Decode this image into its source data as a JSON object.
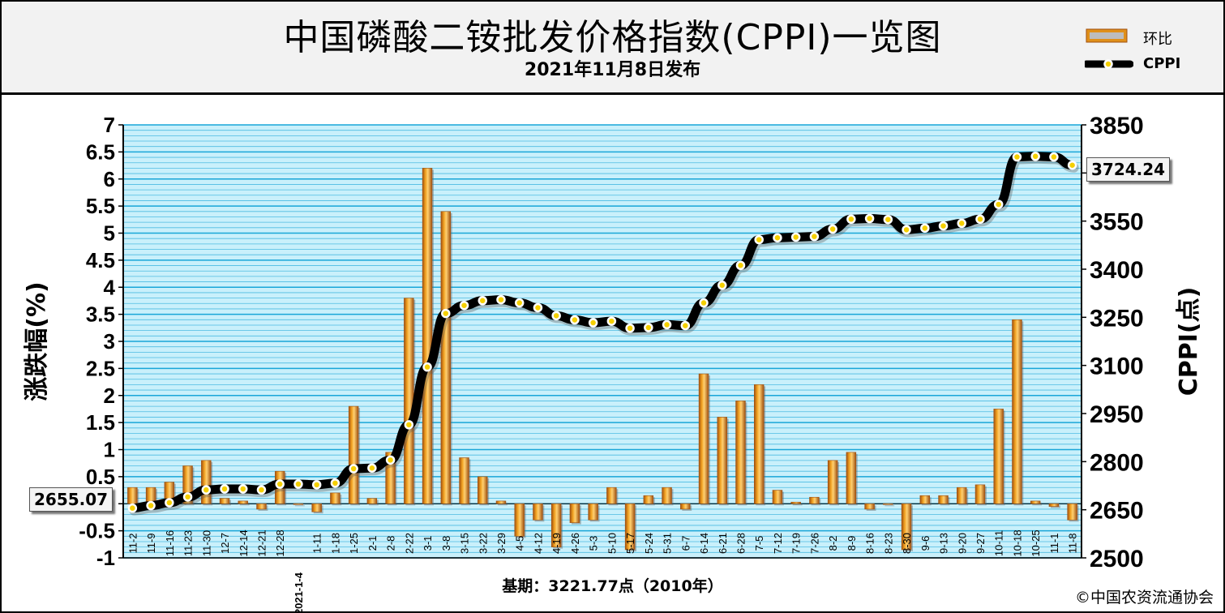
{
  "title": "中国磷酸二铵批发价格指数(CPPI)一览图",
  "subtitle": "2021年11月8日发布",
  "legend": {
    "bar_label": "环比",
    "line_label": "CPPI"
  },
  "base_note": "基期：3221.77点（2010年）",
  "copyright": "©中国农资流通协会",
  "callouts": {
    "first": "2655.07",
    "last": "3724.24"
  },
  "colors": {
    "bar_fill": "#f0a020",
    "bar_dark": "#a05010",
    "line": "#000000",
    "marker": "#f5d000",
    "plot_bg": "#c9f0fb",
    "grid": "#19a6d8"
  },
  "chart_data": {
    "type": "bar+line",
    "categories": [
      "11-2",
      "11-9",
      "11-16",
      "11-23",
      "11-30",
      "12-7",
      "12-14",
      "12-21",
      "12-28",
      "2021-1-4",
      "1-11",
      "1-18",
      "1-25",
      "2-1",
      "2-8",
      "2-22",
      "3-1",
      "3-8",
      "3-15",
      "3-22",
      "3-29",
      "4-5",
      "4-12",
      "4-19",
      "4-26",
      "5-3",
      "5-10",
      "5-17",
      "5-24",
      "5-31",
      "6-7",
      "6-14",
      "6-21",
      "6-28",
      "7-5",
      "7-12",
      "7-19",
      "7-26",
      "8-2",
      "8-9",
      "8-16",
      "8-23",
      "8-30",
      "9-6",
      "9-13",
      "9-20",
      "9-27",
      "10-11",
      "10-18",
      "10-25",
      "11-1",
      "11-8"
    ],
    "series": [
      {
        "name": "环比",
        "type": "bar",
        "axis": "left",
        "values": [
          0.3,
          0.3,
          0.4,
          0.7,
          0.8,
          0.1,
          0.05,
          -0.1,
          0.6,
          0.0,
          -0.15,
          0.2,
          1.8,
          0.1,
          0.95,
          3.8,
          6.2,
          5.4,
          0.85,
          0.5,
          0.05,
          -0.6,
          -0.3,
          -0.8,
          -0.35,
          -0.3,
          0.3,
          -0.85,
          0.15,
          0.3,
          -0.1,
          2.4,
          1.6,
          1.9,
          2.2,
          0.25,
          0.03,
          0.12,
          0.8,
          0.95,
          -0.1,
          0.0,
          -0.85,
          0.15,
          0.15,
          0.3,
          0.35,
          1.75,
          3.4,
          0.05,
          -0.05,
          -0.3
        ]
      },
      {
        "name": "CPPI",
        "type": "line",
        "axis": "right",
        "values": [
          2655.07,
          2663,
          2672,
          2690,
          2712,
          2715,
          2715,
          2712,
          2730,
          2730,
          2728,
          2733,
          2778,
          2780,
          2805,
          2915,
          3095,
          3262,
          3287,
          3302,
          3305,
          3295,
          3280,
          3255,
          3242,
          3233,
          3238,
          3216,
          3218,
          3227,
          3224,
          3295,
          3350,
          3412,
          3492,
          3498,
          3500,
          3502,
          3525,
          3556,
          3558,
          3555,
          3523,
          3528,
          3535,
          3543,
          3556,
          3602,
          3750,
          3752,
          3750,
          3724.24
        ]
      }
    ],
    "y_left": {
      "label": "涨跌幅(%)",
      "range": [
        -1,
        7
      ],
      "ticks": [
        "-1",
        "-0.5",
        "0",
        "0.5",
        "1",
        "1.5",
        "2",
        "2.5",
        "3",
        "3.5",
        "4",
        "4.5",
        "5",
        "5.5",
        "6",
        "6.5",
        "7"
      ]
    },
    "y_right": {
      "label": "CPPI(点)",
      "range": [
        2500,
        3850
      ],
      "ticks": [
        "2500",
        "2650",
        "2800",
        "2950",
        "3100",
        "3250",
        "3400",
        "3550",
        "3700",
        "3850"
      ]
    },
    "grid": true,
    "legend_position": "top-right"
  }
}
